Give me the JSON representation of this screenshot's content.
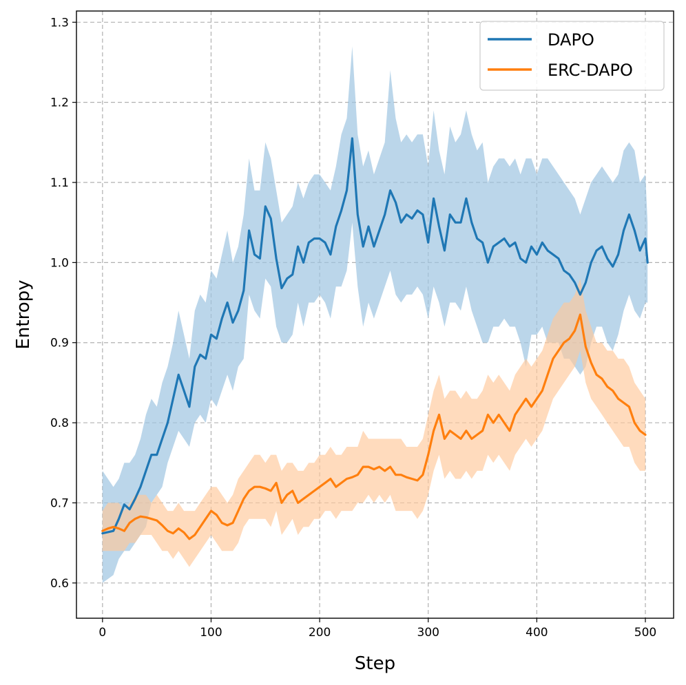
{
  "chart_data": {
    "type": "line",
    "title": "",
    "xlabel": "Step",
    "ylabel": "Entropy",
    "xlim": [
      -24,
      526
    ],
    "ylim": [
      0.556,
      1.314
    ],
    "x_ticks": [
      0,
      100,
      200,
      300,
      400,
      500
    ],
    "y_ticks": [
      0.6,
      0.7,
      0.8,
      0.9,
      1.0,
      1.1,
      1.2,
      1.3
    ],
    "x_tick_labels": [
      "0",
      "100",
      "200",
      "300",
      "400",
      "500"
    ],
    "y_tick_labels": [
      "0.6",
      "0.7",
      "0.8",
      "0.9",
      "1.0",
      "1.1",
      "1.2",
      "1.3"
    ],
    "grid": true,
    "legend_position": "top-right",
    "series": [
      {
        "name": "DAPO",
        "color": "#1f77b4",
        "band_color": "#9ec4e1",
        "x": [
          0,
          10,
          15,
          20,
          25,
          30,
          35,
          40,
          45,
          50,
          55,
          60,
          65,
          70,
          75,
          80,
          85,
          90,
          95,
          100,
          105,
          110,
          115,
          120,
          125,
          130,
          135,
          140,
          145,
          150,
          155,
          160,
          165,
          170,
          175,
          180,
          185,
          190,
          195,
          200,
          205,
          210,
          215,
          220,
          225,
          230,
          235,
          240,
          245,
          250,
          255,
          260,
          265,
          270,
          275,
          280,
          285,
          290,
          295,
          300,
          305,
          310,
          315,
          320,
          325,
          330,
          335,
          340,
          345,
          350,
          355,
          360,
          365,
          370,
          375,
          380,
          385,
          390,
          395,
          400,
          405,
          410,
          415,
          420,
          425,
          430,
          435,
          440,
          445,
          450,
          455,
          460,
          465,
          470,
          475,
          480,
          485,
          490,
          495,
          500,
          502
        ],
        "y": [
          0.662,
          0.665,
          0.68,
          0.698,
          0.692,
          0.705,
          0.72,
          0.74,
          0.76,
          0.76,
          0.78,
          0.8,
          0.83,
          0.86,
          0.84,
          0.82,
          0.87,
          0.885,
          0.88,
          0.91,
          0.905,
          0.93,
          0.95,
          0.925,
          0.94,
          0.965,
          1.04,
          1.01,
          1.005,
          1.07,
          1.055,
          1.005,
          0.968,
          0.98,
          0.985,
          1.02,
          1.0,
          1.025,
          1.03,
          1.03,
          1.025,
          1.01,
          1.045,
          1.065,
          1.09,
          1.155,
          1.06,
          1.02,
          1.045,
          1.02,
          1.04,
          1.06,
          1.09,
          1.075,
          1.05,
          1.06,
          1.055,
          1.065,
          1.06,
          1.025,
          1.08,
          1.045,
          1.015,
          1.06,
          1.05,
          1.05,
          1.08,
          1.05,
          1.03,
          1.025,
          1.0,
          1.02,
          1.025,
          1.03,
          1.02,
          1.025,
          1.005,
          1.0,
          1.02,
          1.01,
          1.025,
          1.015,
          1.01,
          1.005,
          0.99,
          0.985,
          0.975,
          0.96,
          0.975,
          1.0,
          1.015,
          1.02,
          1.005,
          0.995,
          1.01,
          1.04,
          1.06,
          1.04,
          1.015,
          1.03,
          1.0
        ],
        "lower": [
          0.6,
          0.61,
          0.63,
          0.64,
          0.64,
          0.65,
          0.66,
          0.67,
          0.7,
          0.71,
          0.72,
          0.75,
          0.77,
          0.79,
          0.78,
          0.77,
          0.8,
          0.81,
          0.8,
          0.83,
          0.82,
          0.84,
          0.86,
          0.84,
          0.87,
          0.88,
          0.96,
          0.94,
          0.93,
          0.98,
          0.97,
          0.92,
          0.9,
          0.9,
          0.91,
          0.95,
          0.92,
          0.95,
          0.95,
          0.96,
          0.95,
          0.93,
          0.97,
          0.97,
          0.99,
          1.05,
          0.97,
          0.92,
          0.95,
          0.93,
          0.95,
          0.97,
          0.99,
          0.96,
          0.95,
          0.96,
          0.96,
          0.97,
          0.96,
          0.93,
          0.97,
          0.95,
          0.92,
          0.95,
          0.95,
          0.94,
          0.97,
          0.94,
          0.92,
          0.9,
          0.9,
          0.92,
          0.92,
          0.93,
          0.92,
          0.92,
          0.9,
          0.87,
          0.91,
          0.91,
          0.92,
          0.9,
          0.9,
          0.9,
          0.88,
          0.88,
          0.87,
          0.86,
          0.87,
          0.9,
          0.92,
          0.92,
          0.9,
          0.89,
          0.91,
          0.94,
          0.96,
          0.94,
          0.93,
          0.95,
          0.95
        ],
        "upper": [
          0.74,
          0.72,
          0.73,
          0.75,
          0.75,
          0.76,
          0.78,
          0.81,
          0.83,
          0.82,
          0.85,
          0.87,
          0.9,
          0.94,
          0.91,
          0.88,
          0.94,
          0.96,
          0.95,
          0.99,
          0.98,
          1.01,
          1.04,
          1.0,
          1.02,
          1.06,
          1.13,
          1.09,
          1.09,
          1.15,
          1.13,
          1.09,
          1.05,
          1.06,
          1.07,
          1.1,
          1.08,
          1.1,
          1.11,
          1.11,
          1.1,
          1.09,
          1.12,
          1.16,
          1.18,
          1.27,
          1.16,
          1.12,
          1.14,
          1.11,
          1.13,
          1.15,
          1.24,
          1.18,
          1.15,
          1.16,
          1.15,
          1.16,
          1.16,
          1.12,
          1.19,
          1.14,
          1.11,
          1.17,
          1.15,
          1.16,
          1.19,
          1.16,
          1.14,
          1.15,
          1.1,
          1.12,
          1.13,
          1.13,
          1.12,
          1.13,
          1.11,
          1.13,
          1.13,
          1.11,
          1.13,
          1.13,
          1.12,
          1.11,
          1.1,
          1.09,
          1.08,
          1.06,
          1.08,
          1.1,
          1.11,
          1.12,
          1.11,
          1.1,
          1.11,
          1.14,
          1.15,
          1.14,
          1.1,
          1.11,
          1.05
        ]
      },
      {
        "name": "ERC-DAPO",
        "color": "#ff7f0e",
        "band_color": "#ffc799",
        "x": [
          0,
          5,
          10,
          15,
          20,
          25,
          30,
          35,
          40,
          45,
          50,
          55,
          60,
          65,
          70,
          75,
          80,
          85,
          90,
          95,
          100,
          105,
          110,
          115,
          120,
          125,
          130,
          135,
          140,
          145,
          150,
          155,
          160,
          165,
          170,
          175,
          180,
          185,
          190,
          195,
          200,
          205,
          210,
          215,
          220,
          225,
          230,
          235,
          240,
          245,
          250,
          255,
          260,
          265,
          270,
          275,
          280,
          285,
          290,
          295,
          300,
          305,
          310,
          315,
          320,
          325,
          330,
          335,
          340,
          345,
          350,
          355,
          360,
          365,
          370,
          375,
          380,
          385,
          390,
          395,
          400,
          405,
          410,
          415,
          420,
          425,
          430,
          435,
          440,
          445,
          450,
          455,
          460,
          465,
          470,
          475,
          480,
          485,
          490,
          495,
          500
        ],
        "y": [
          0.665,
          0.668,
          0.67,
          0.668,
          0.665,
          0.675,
          0.68,
          0.683,
          0.682,
          0.68,
          0.678,
          0.672,
          0.665,
          0.662,
          0.668,
          0.663,
          0.655,
          0.66,
          0.67,
          0.68,
          0.69,
          0.685,
          0.675,
          0.672,
          0.675,
          0.69,
          0.705,
          0.715,
          0.72,
          0.72,
          0.718,
          0.715,
          0.725,
          0.7,
          0.71,
          0.715,
          0.7,
          0.705,
          0.71,
          0.715,
          0.72,
          0.725,
          0.73,
          0.72,
          0.725,
          0.73,
          0.732,
          0.735,
          0.745,
          0.745,
          0.742,
          0.745,
          0.74,
          0.745,
          0.735,
          0.735,
          0.732,
          0.73,
          0.728,
          0.735,
          0.76,
          0.79,
          0.81,
          0.78,
          0.79,
          0.785,
          0.78,
          0.79,
          0.78,
          0.785,
          0.79,
          0.81,
          0.8,
          0.81,
          0.8,
          0.79,
          0.81,
          0.82,
          0.83,
          0.82,
          0.83,
          0.84,
          0.86,
          0.88,
          0.89,
          0.9,
          0.905,
          0.915,
          0.935,
          0.895,
          0.875,
          0.86,
          0.855,
          0.845,
          0.84,
          0.83,
          0.825,
          0.82,
          0.8,
          0.79,
          0.785
        ],
        "lower": [
          0.64,
          0.64,
          0.64,
          0.64,
          0.64,
          0.65,
          0.65,
          0.66,
          0.66,
          0.66,
          0.65,
          0.64,
          0.64,
          0.63,
          0.64,
          0.63,
          0.62,
          0.63,
          0.64,
          0.65,
          0.66,
          0.65,
          0.64,
          0.64,
          0.64,
          0.65,
          0.67,
          0.68,
          0.68,
          0.68,
          0.68,
          0.67,
          0.69,
          0.66,
          0.67,
          0.68,
          0.66,
          0.67,
          0.67,
          0.68,
          0.68,
          0.69,
          0.69,
          0.68,
          0.69,
          0.69,
          0.69,
          0.7,
          0.7,
          0.71,
          0.7,
          0.71,
          0.7,
          0.71,
          0.69,
          0.69,
          0.69,
          0.69,
          0.68,
          0.69,
          0.71,
          0.74,
          0.76,
          0.73,
          0.74,
          0.73,
          0.73,
          0.74,
          0.73,
          0.74,
          0.74,
          0.76,
          0.75,
          0.76,
          0.75,
          0.74,
          0.76,
          0.77,
          0.78,
          0.77,
          0.78,
          0.79,
          0.81,
          0.83,
          0.84,
          0.85,
          0.86,
          0.87,
          0.89,
          0.85,
          0.83,
          0.82,
          0.81,
          0.8,
          0.79,
          0.78,
          0.77,
          0.77,
          0.75,
          0.74,
          0.74
        ],
        "upper": [
          0.69,
          0.7,
          0.7,
          0.7,
          0.69,
          0.7,
          0.71,
          0.71,
          0.71,
          0.7,
          0.71,
          0.7,
          0.69,
          0.69,
          0.7,
          0.69,
          0.69,
          0.69,
          0.7,
          0.71,
          0.72,
          0.72,
          0.71,
          0.7,
          0.71,
          0.73,
          0.74,
          0.75,
          0.76,
          0.76,
          0.75,
          0.76,
          0.76,
          0.74,
          0.75,
          0.75,
          0.74,
          0.74,
          0.75,
          0.75,
          0.76,
          0.76,
          0.77,
          0.76,
          0.76,
          0.77,
          0.77,
          0.77,
          0.79,
          0.78,
          0.78,
          0.78,
          0.78,
          0.78,
          0.78,
          0.78,
          0.77,
          0.77,
          0.77,
          0.78,
          0.81,
          0.84,
          0.86,
          0.83,
          0.84,
          0.84,
          0.83,
          0.84,
          0.83,
          0.83,
          0.84,
          0.86,
          0.85,
          0.86,
          0.85,
          0.84,
          0.86,
          0.87,
          0.88,
          0.87,
          0.88,
          0.89,
          0.91,
          0.93,
          0.94,
          0.95,
          0.95,
          0.96,
          0.98,
          0.94,
          0.92,
          0.9,
          0.9,
          0.89,
          0.89,
          0.88,
          0.88,
          0.87,
          0.85,
          0.84,
          0.83
        ]
      }
    ]
  }
}
